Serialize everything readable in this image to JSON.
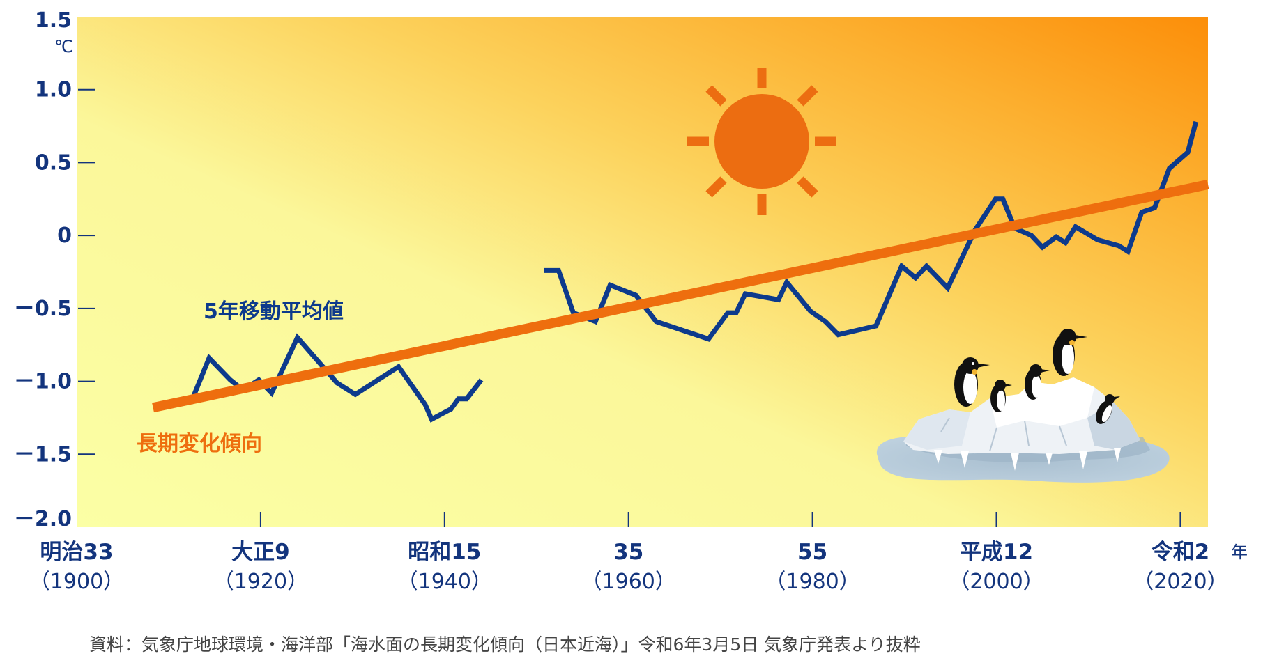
{
  "colors": {
    "axis_text": "#13347d",
    "moving_average": "#0d3a8c",
    "trend": "#ee6e0e",
    "sun": "#ec6d11",
    "bg_light": "#fbffa5",
    "bg_mid": "#fccc55",
    "bg_dark": "#fc8e09"
  },
  "icons": [
    "sun-icon",
    "penguins-on-ice-icon"
  ],
  "unit_y": "℃",
  "unit_x": "年",
  "source_note": "資料：気象庁地球環境・海洋部「海水面の長期変化傾向（日本近海）」令和6年3月5日 気象庁発表より抜粋",
  "chart_data": {
    "type": "line",
    "title": "",
    "xlabel": "",
    "ylabel": "",
    "xlim": [
      1900,
      2023
    ],
    "ylim": [
      -2.0,
      1.5
    ],
    "grid": false,
    "y_ticks": [
      {
        "value": 1.5,
        "label": "1.5"
      },
      {
        "value": 1.0,
        "label": "1.0"
      },
      {
        "value": 0.5,
        "label": "0.5"
      },
      {
        "value": 0,
        "label": "0"
      },
      {
        "value": -0.5,
        "label": "－0.5"
      },
      {
        "value": -1.0,
        "label": "－1.0"
      },
      {
        "value": -1.5,
        "label": "－1.5"
      },
      {
        "value": -2.0,
        "label": "－2.0"
      }
    ],
    "x_ticks": [
      {
        "value": 1900,
        "era": "明治33",
        "year": "（1900）"
      },
      {
        "value": 1920,
        "era": "大正9",
        "year": "（1920）"
      },
      {
        "value": 1940,
        "era": "昭和15",
        "year": "（1940）"
      },
      {
        "value": 1960,
        "era": "35",
        "year": "（1960）"
      },
      {
        "value": 1980,
        "era": "55",
        "year": "（1980）"
      },
      {
        "value": 2000,
        "era": "平成12",
        "year": "（2000）"
      },
      {
        "value": 2020,
        "era": "令和2",
        "year": "（2020）"
      }
    ],
    "series": [
      {
        "name": "5年移動平均値",
        "segments": [
          [
            [
              1912.4,
              -1.15
            ],
            [
              1914.4,
              -0.84
            ],
            [
              1916.7,
              -0.99
            ],
            [
              1918.1,
              -1.06
            ],
            [
              1919.8,
              -0.99
            ],
            [
              1921.2,
              -1.08
            ],
            [
              1924.0,
              -0.7
            ],
            [
              1928.3,
              -1.01
            ],
            [
              1930.3,
              -1.09
            ],
            [
              1934.5,
              -0.92
            ],
            [
              1935.0,
              -0.9
            ],
            [
              1937.9,
              -1.16
            ],
            [
              1938.6,
              -1.26
            ],
            [
              1940.7,
              -1.19
            ],
            [
              1941.5,
              -1.12
            ],
            [
              1942.4,
              -1.12
            ],
            [
              1944.0,
              -0.99
            ]
          ],
          [
            [
              1950.8,
              -0.24
            ],
            [
              1952.4,
              -0.24
            ],
            [
              1954.0,
              -0.53
            ],
            [
              1956.4,
              -0.59
            ],
            [
              1958.0,
              -0.34
            ],
            [
              1960.8,
              -0.41
            ],
            [
              1963.0,
              -0.59
            ],
            [
              1968.7,
              -0.71
            ],
            [
              1970.8,
              -0.53
            ],
            [
              1971.7,
              -0.53
            ],
            [
              1972.7,
              -0.4
            ],
            [
              1976.3,
              -0.44
            ],
            [
              1977.2,
              -0.32
            ],
            [
              1979.8,
              -0.52
            ],
            [
              1981.4,
              -0.59
            ],
            [
              1982.8,
              -0.68
            ],
            [
              1986.9,
              -0.62
            ],
            [
              1989.7,
              -0.21
            ],
            [
              1991.2,
              -0.29
            ],
            [
              1992.4,
              -0.21
            ],
            [
              1994.7,
              -0.36
            ],
            [
              1995.6,
              -0.24
            ],
            [
              1997.7,
              0.04
            ],
            [
              1999.9,
              0.25
            ],
            [
              2000.7,
              0.25
            ],
            [
              2002.0,
              0.05
            ],
            [
              2003.8,
              0.0
            ],
            [
              2005.0,
              -0.08
            ],
            [
              2006.5,
              -0.01
            ],
            [
              2007.5,
              -0.05
            ],
            [
              2008.6,
              0.06
            ],
            [
              2011.0,
              -0.03
            ],
            [
              2013.3,
              -0.07
            ],
            [
              2014.3,
              -0.11
            ],
            [
              2015.8,
              0.16
            ],
            [
              2017.2,
              0.19
            ],
            [
              2018.8,
              0.46
            ],
            [
              2020.8,
              0.57
            ],
            [
              2021.7,
              0.78
            ]
          ]
        ]
      },
      {
        "name": "長期変化傾向",
        "points": [
          [
            1908.3,
            -1.18
          ],
          [
            2023,
            0.35
          ]
        ]
      }
    ]
  }
}
